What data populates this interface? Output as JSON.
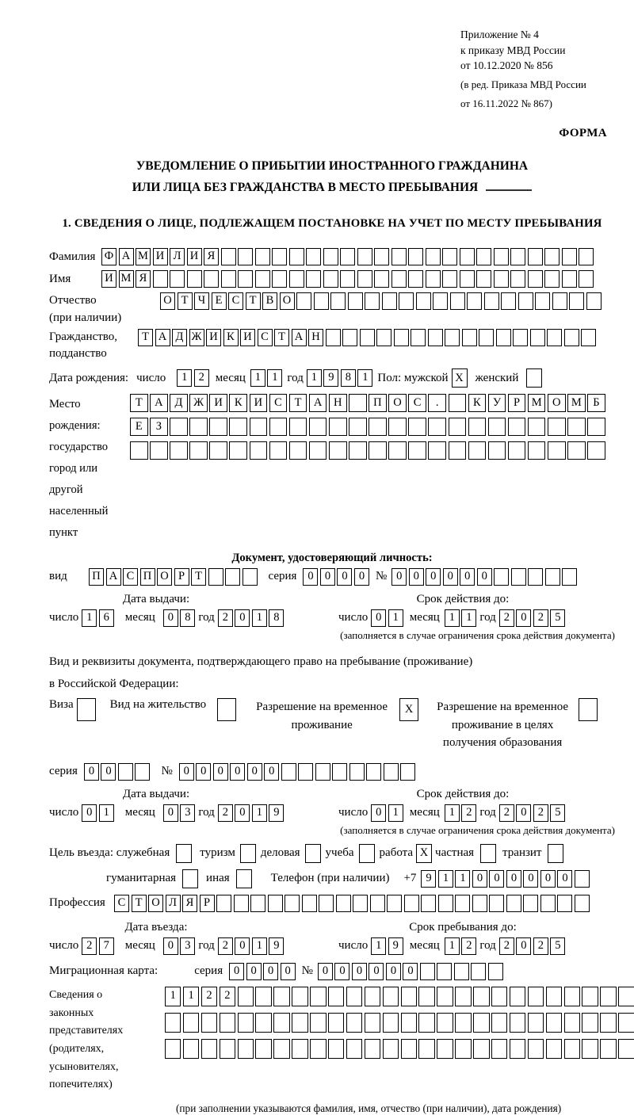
{
  "marks": {
    "checked": "X"
  },
  "annex": {
    "line1": "Приложение № 4",
    "line2": "к приказу МВД России",
    "line3": "от 10.12.2020 № 856",
    "note1": "(в ред. Приказа МВД России",
    "note2": "от 16.11.2022 № 867)",
    "form": "ФОРМА"
  },
  "title": {
    "line1": "УВЕДОМЛЕНИЕ О ПРИБЫТИИ ИНОСТРАННОГО ГРАЖДАНИНА",
    "line2": "ИЛИ ЛИЦА БЕЗ ГРАЖДАНСТВА В МЕСТО ПРЕБЫВАНИЯ",
    "section1": "1. СВЕДЕНИЯ О ЛИЦЕ, ПОДЛЕЖАЩЕМ ПОСТАНОВКЕ НА УЧЕТ ПО МЕСТУ ПРЕБЫВАНИЯ"
  },
  "labels": {
    "day": "число",
    "month": "месяц",
    "year": "год",
    "series": "серия",
    "number": "№",
    "issue_date": "Дата выдачи:",
    "valid_until": "Срок действия до:",
    "limit_footnote": "(заполняется в случае ограничения срока действия документа)"
  },
  "person": {
    "surname": {
      "label": "Фамилия",
      "cells": {
        "value": "ФАМИЛИЯ",
        "len": 29
      }
    },
    "firstname": {
      "label": "Имя",
      "cells": {
        "value": "ИМЯ",
        "len": 29
      }
    },
    "patronymic": {
      "label1": "Отчество",
      "label2": "(при наличии)",
      "cells": {
        "value": "ОТЧЕСТВО",
        "len": 26
      }
    },
    "citizenship": {
      "label1": "Гражданство,",
      "label2": "подданство",
      "cells": {
        "value": "ТАДЖИКИСТАН",
        "len": 27
      }
    },
    "birthdate": {
      "label": "Дата рождения:",
      "day": {
        "value": "12",
        "len": 2
      },
      "month": {
        "value": "11",
        "len": 2
      },
      "year": {
        "value": "1981",
        "len": 4
      },
      "sex_label": "Пол: мужской",
      "male_checked": true,
      "female_label": "женский",
      "female_checked": false
    },
    "birthplace": {
      "label1": "Место рождения:",
      "label2": "государство",
      "label3": "город или другой",
      "label4": "населенный пункт",
      "row1": {
        "value": "ТАДЖИКИСТАН ПОС. КУРМОМБ",
        "len": 24
      },
      "row2": {
        "value": "ЕЗ",
        "len": 24
      },
      "row3": {
        "value": "",
        "len": 24
      }
    }
  },
  "identity_doc": {
    "header": "Документ, удостоверяющий личность:",
    "kind_label": "вид",
    "kind": {
      "value": "ПАСПОРТ",
      "len": 10
    },
    "series": {
      "value": "0000",
      "len": 4
    },
    "number": {
      "value": "000000",
      "len": 11
    },
    "issue": {
      "day": {
        "value": "16",
        "len": 2
      },
      "month": {
        "value": "08",
        "len": 2
      },
      "year": {
        "value": "2018",
        "len": 4
      }
    },
    "valid": {
      "day": {
        "value": "01",
        "len": 2
      },
      "month": {
        "value": "11",
        "len": 2
      },
      "year": {
        "value": "2025",
        "len": 4
      }
    }
  },
  "residence_doc": {
    "intro1": "Вид и реквизиты документа, подтверждающего право на пребывание (проживание)",
    "intro2": "в Российской Федерации:",
    "options": [
      {
        "label": "Виза",
        "checked": false
      },
      {
        "label": "Вид на жительство",
        "checked": false
      },
      {
        "label": "Разрешение на временное проживание",
        "checked": true
      },
      {
        "label": "Разрешение на временное проживание в целях получения образования",
        "checked": false
      }
    ],
    "series": {
      "value": "00",
      "len": 4
    },
    "number": {
      "value": "000000",
      "len": 14
    },
    "issue": {
      "day": {
        "value": "01",
        "len": 2
      },
      "month": {
        "value": "03",
        "len": 2
      },
      "year": {
        "value": "2019",
        "len": 4
      }
    },
    "valid": {
      "day": {
        "value": "01",
        "len": 2
      },
      "month": {
        "value": "12",
        "len": 2
      },
      "year": {
        "value": "2025",
        "len": 4
      }
    }
  },
  "visit": {
    "purpose_label": "Цель въезда: служебная",
    "purposes_row1": [
      {
        "label": "туризм",
        "checked": false
      },
      {
        "label": "деловая",
        "checked": false
      },
      {
        "label": "учеба",
        "checked": false
      },
      {
        "label": "работа",
        "checked": true
      },
      {
        "label": "частная",
        "checked": false
      },
      {
        "label": "транзит",
        "checked": false
      }
    ],
    "official_checked": false,
    "purposes_row2": [
      {
        "label": "гуманитарная",
        "checked": false
      },
      {
        "label": "иная",
        "checked": false
      }
    ],
    "phone_label": "Телефон (при наличии)",
    "phone_prefix": "+7",
    "phone": {
      "value": "911000000",
      "len": 10
    },
    "profession_label": "Профессия",
    "profession": {
      "value": "СТОЛЯР",
      "len": 28
    },
    "entry_label": "Дата въезда:",
    "entry": {
      "day": {
        "value": "27",
        "len": 2
      },
      "month": {
        "value": "03",
        "len": 2
      },
      "year": {
        "value": "2019",
        "len": 4
      }
    },
    "stay_label": "Срок пребывания до:",
    "stay": {
      "day": {
        "value": "19",
        "len": 2
      },
      "month": {
        "value": "12",
        "len": 2
      },
      "year": {
        "value": "2025",
        "len": 4
      }
    },
    "migcard_label": "Миграционная карта:",
    "migcard_series": {
      "value": "0000",
      "len": 4
    },
    "migcard_number": {
      "value": "000000",
      "len": 11
    }
  },
  "representatives": {
    "label_lines": [
      "Сведения о",
      "законных",
      "представителях",
      "(родителях,",
      "усыновителях,",
      "попечителях)"
    ],
    "row1": {
      "value": "1122",
      "len": 27
    },
    "row2": {
      "value": "",
      "len": 27
    },
    "row3": {
      "value": "",
      "len": 27
    },
    "footnote": "(при заполнении указываются фамилия, имя, отчество (при наличии), дата рождения)"
  }
}
